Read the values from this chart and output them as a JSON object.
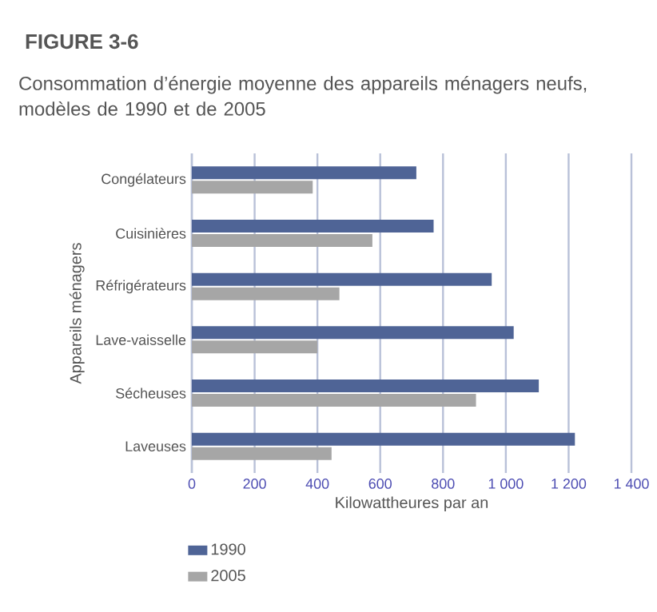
{
  "chart_data": {
    "type": "bar",
    "orientation": "horizontal",
    "title": "FIGURE 3-6",
    "subtitle": "Consommation d’énergie moyenne des appareils ménagers neufs, modèles de 1990 et de 2005",
    "xlabel": "Kilowattheures par an",
    "ylabel": "Appareils ménagers",
    "categories": [
      "Congélateurs",
      "Cuisinières",
      "Réfrigérateurs",
      "Lave-vaisselle",
      "Sécheuses",
      "Laveuses"
    ],
    "series": [
      {
        "name": "1990",
        "color": "#4f6496",
        "values": [
          715,
          770,
          955,
          1025,
          1105,
          1220
        ]
      },
      {
        "name": "2005",
        "color": "#a6a6a6",
        "values": [
          385,
          575,
          470,
          400,
          905,
          445
        ]
      }
    ],
    "xlim": [
      0,
      1400
    ],
    "xticks": [
      0,
      200,
      400,
      600,
      800,
      {
        "value": 1000,
        "label": "1 000"
      },
      {
        "value": 1200,
        "label": "1 200"
      },
      {
        "value": 1400,
        "label": "1 400"
      }
    ],
    "grid": "x",
    "legend": "bottom left"
  }
}
